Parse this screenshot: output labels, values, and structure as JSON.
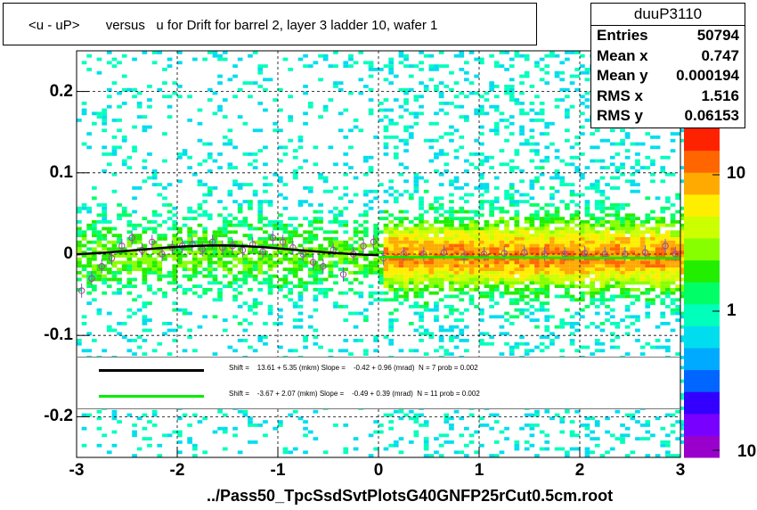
{
  "title": "<u - uP>       versus   u for Drift for barrel 2, layer 3 ladder 10, wafer 1",
  "stats": {
    "name": "duuP3110",
    "rows": [
      {
        "k": "Entries",
        "v": "50794"
      },
      {
        "k": "Mean x",
        "v": "0.747"
      },
      {
        "k": "Mean y",
        "v": "0.000194"
      },
      {
        "k": "RMS x",
        "v": "1.516"
      },
      {
        "k": "RMS y",
        "v": "0.06153"
      }
    ]
  },
  "legend": [
    {
      "color": "#000000",
      "text": "Shift =    13.61 + 5.35 (mkm) Slope =    -0.42 + 0.96 (mrad)  N = 7 prob = 0.002"
    },
    {
      "color": "#00ee00",
      "text": "Shift =    -3.67 + 2.07 (mkm) Slope =    -0.49 + 0.39 (mrad)  N = 11 prob = 0.002"
    }
  ],
  "footer": "../Pass50_TpcSsdSvtPlotsG40GNFP25rCut0.5cm.root",
  "colors": {
    "palette": [
      "#9900cc",
      "#7700ff",
      "#3300ff",
      "#0066ff",
      "#00aaff",
      "#00ddee",
      "#00ffbb",
      "#00ff66",
      "#22ee00",
      "#88ff00",
      "#ccff00",
      "#ffee00",
      "#ffaa00",
      "#ff6600",
      "#ff2200"
    ]
  },
  "chart_data": {
    "type": "heatmap",
    "xlim": [
      -3,
      3
    ],
    "ylim": [
      -0.25,
      0.25
    ],
    "x_ticks": [
      -3,
      -2,
      -1,
      0,
      1,
      2,
      3
    ],
    "x_tick_labels": [
      "-3",
      "-2",
      "-1",
      "0",
      "1",
      "2",
      "3"
    ],
    "y_ticks": [
      -0.2,
      -0.1,
      0,
      0.1,
      0.2
    ],
    "y_tick_labels": [
      "-0.2",
      "-0.1",
      "0",
      "0.1",
      "0.2"
    ],
    "z_scale": "log",
    "z_tick_labels": [
      "10",
      "1",
      "10"
    ],
    "grid": true,
    "profile": {
      "x": [
        -2.95,
        -2.85,
        -2.75,
        -2.65,
        -2.55,
        -2.45,
        -2.35,
        -2.25,
        -2.15,
        -2.05,
        -1.95,
        -1.85,
        -1.75,
        -1.65,
        -1.55,
        -1.45,
        -1.35,
        -1.25,
        -1.15,
        -1.05,
        -0.95,
        -0.85,
        -0.75,
        -0.65,
        -0.55,
        -0.45,
        -0.35,
        -0.25,
        -0.15,
        -0.05,
        0.05,
        0.25,
        0.45,
        0.65,
        0.85,
        1.05,
        1.25,
        1.45,
        1.65,
        1.85,
        2.05,
        2.25,
        2.45,
        2.65,
        2.85,
        2.95
      ],
      "y": [
        -0.045,
        -0.03,
        -0.015,
        -0.005,
        0.01,
        0.02,
        0.005,
        0.015,
        0.0,
        0.008,
        0.01,
        0.012,
        0.006,
        0.015,
        0.008,
        0.01,
        0.005,
        0.012,
        0.003,
        0.02,
        0.015,
        0.008,
        0.0,
        -0.01,
        -0.015,
        0.005,
        -0.025,
        0.0,
        0.01,
        0.015,
        -0.005,
        0.0,
        0.0,
        0.002,
        -0.003,
        0.0,
        0.001,
        0.002,
        0.0,
        0.0,
        0.001,
        0.0,
        0.0,
        0.002,
        0.01,
        0.0
      ]
    },
    "fits": [
      {
        "x_range": [
          -3.0,
          0.0
        ],
        "shift_mkm": 13.61,
        "slope_mrad": -0.42
      },
      {
        "x_range": [
          0.0,
          3.0
        ],
        "shift_mkm": -3.67,
        "slope_mrad": -0.49
      }
    ]
  }
}
